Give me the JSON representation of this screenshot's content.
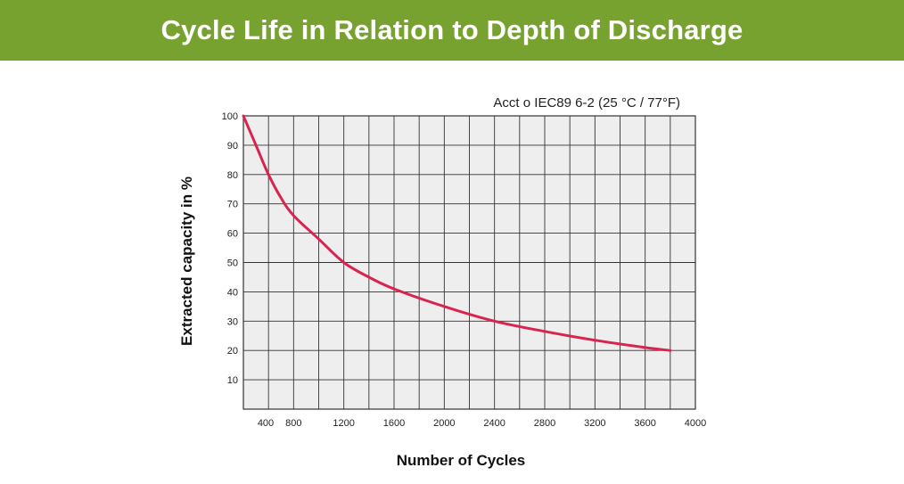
{
  "header": {
    "title": "Cycle Life in Relation to Depth of Discharge"
  },
  "colors": {
    "banner": "#78a22f",
    "plot_background": "#eeeeee",
    "grid": "#333333",
    "curve": "#d8244f"
  },
  "chart_data": {
    "type": "line",
    "title": "",
    "annotation": "Acct o IEC89  6-2 (25 °C / 77°F)",
    "xlabel": "Number of Cycles",
    "ylabel": "Extracted capacity in %",
    "xlim": [
      400,
      4000
    ],
    "ylim": [
      0,
      100
    ],
    "xticks": [
      400,
      800,
      1200,
      1600,
      2000,
      2400,
      2800,
      3200,
      3600,
      4000
    ],
    "xtick_labels": [
      "400",
      "800",
      "1200",
      "1600",
      "2000",
      "2400",
      "2800",
      "3200",
      "3600",
      "4000"
    ],
    "yticks": [
      10,
      20,
      30,
      40,
      50,
      60,
      70,
      80,
      90,
      100
    ],
    "ytick_labels": [
      "10",
      "20",
      "30",
      "40",
      "50",
      "60",
      "70",
      "80",
      "90",
      "100"
    ],
    "grid": true,
    "x_grid_step": 200,
    "legend": "none",
    "series": [
      {
        "x": [
          400,
          500,
          600,
          700,
          800,
          1000,
          1200,
          1400,
          1600,
          2000,
          2400,
          2800,
          3200,
          3600,
          3800
        ],
        "y": [
          100,
          90,
          80,
          72,
          66,
          58,
          50,
          45,
          41,
          35,
          30,
          26.5,
          23.5,
          21,
          20
        ]
      }
    ]
  }
}
